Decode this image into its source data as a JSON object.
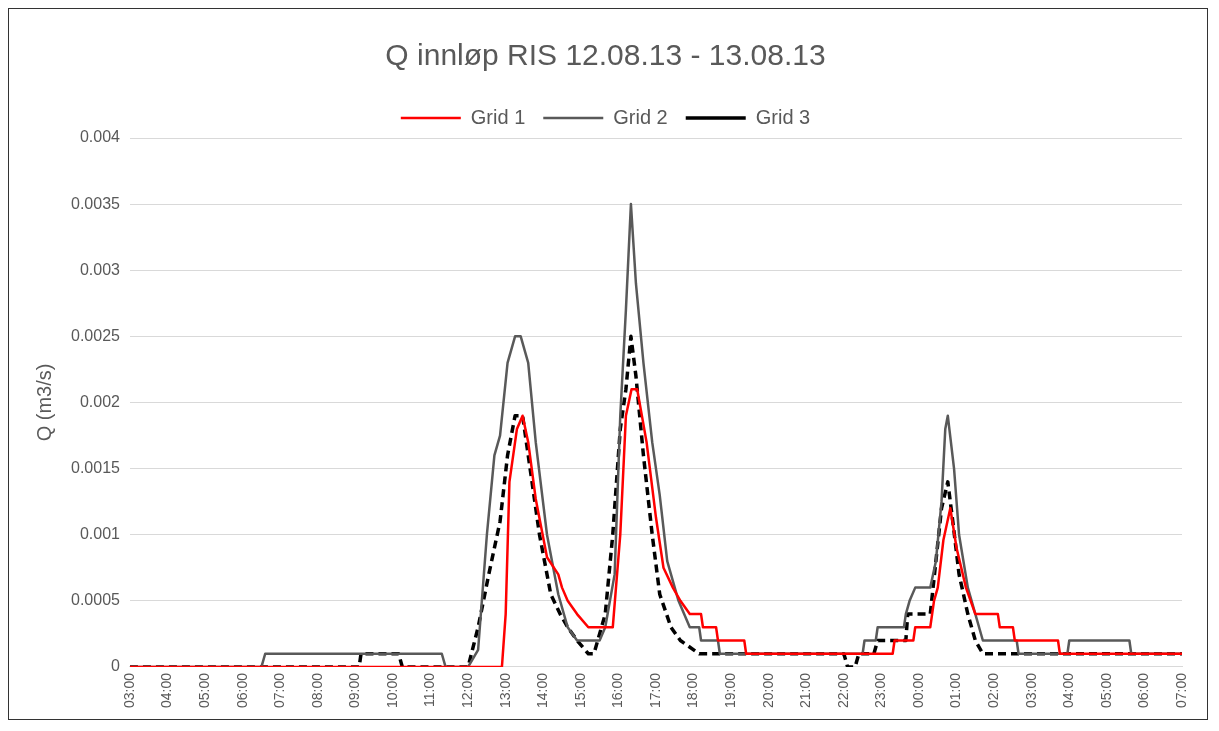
{
  "chart_data": {
    "type": "line",
    "title": "Q innløp RIS 12.08.13 - 13.08.13",
    "ylabel": "Q (m3/s)",
    "xlim": [
      "--08-12T03:00",
      "--08-13T07:00"
    ],
    "xticks": [
      {
        "value": "--08-12T03:00",
        "label": "03:00"
      },
      {
        "value": "--08-12T04:00",
        "label": "04:00"
      },
      {
        "value": "--08-12T05:00",
        "label": "05:00"
      },
      {
        "value": "--08-12T06:00",
        "label": "06:00"
      },
      {
        "value": "--08-12T07:00",
        "label": "07:00"
      },
      {
        "value": "--08-12T08:00",
        "label": "08:00"
      },
      {
        "value": "--08-12T09:00",
        "label": "09:00"
      },
      {
        "value": "--08-12T10:00",
        "label": "10:00"
      },
      {
        "value": "--08-12T11:00",
        "label": "11:00"
      },
      {
        "value": "--08-12T12:00",
        "label": "12:00"
      },
      {
        "value": "--08-12T13:00",
        "label": "13:00"
      },
      {
        "value": "--08-12T14:00",
        "label": "14:00"
      },
      {
        "value": "--08-12T15:00",
        "label": "15:00"
      },
      {
        "value": "--08-12T16:00",
        "label": "16:00"
      },
      {
        "value": "--08-12T17:00",
        "label": "17:00"
      },
      {
        "value": "--08-12T18:00",
        "label": "18:00"
      },
      {
        "value": "--08-12T19:00",
        "label": "19:00"
      },
      {
        "value": "--08-12T20:00",
        "label": "20:00"
      },
      {
        "value": "--08-12T21:00",
        "label": "21:00"
      },
      {
        "value": "--08-12T22:00",
        "label": "22:00"
      },
      {
        "value": "--08-12T23:00",
        "label": "23:00"
      },
      {
        "value": "--08-13T00:00",
        "label": "00:00"
      },
      {
        "value": "--08-13T01:00",
        "label": "01:00"
      },
      {
        "value": "--08-13T02:00",
        "label": "02:00"
      },
      {
        "value": "--08-13T03:00",
        "label": "03:00"
      },
      {
        "value": "--08-13T04:00",
        "label": "04:00"
      },
      {
        "value": "--08-13T05:00",
        "label": "05:00"
      },
      {
        "value": "--08-13T06:00",
        "label": "06:00"
      },
      {
        "value": "--08-13T07:00",
        "label": "07:00"
      }
    ],
    "ylim": [
      0,
      0.004
    ],
    "yticks": [
      0,
      0.0005,
      0.001,
      0.0015,
      0.002,
      0.0025,
      0.003,
      0.0035,
      0.004
    ],
    "grid": "y",
    "legend": "top",
    "marker": "none",
    "series": [
      {
        "name": "Grid 1",
        "color": "#ff0000",
        "line_style": "solid",
        "x": [
          "--08-12T03:00",
          "--08-12T12:54",
          "--08-12T13:00",
          "--08-12T13:06",
          "--08-12T13:18",
          "--08-12T13:27",
          "--08-12T13:36",
          "--08-12T13:48",
          "--08-12T14:06",
          "--08-12T14:24",
          "--08-12T14:30",
          "--08-12T14:39",
          "--08-12T14:54",
          "--08-12T15:12",
          "--08-12T15:51",
          "--08-12T16:03",
          "--08-12T16:12",
          "--08-12T16:21",
          "--08-12T16:30",
          "--08-12T16:45",
          "--08-12T17:00",
          "--08-12T17:12",
          "--08-12T17:27",
          "--08-12T17:39",
          "--08-12T17:54",
          "--08-12T18:12",
          "--08-12T18:15",
          "--08-12T18:36",
          "--08-12T18:39",
          "--08-12T19:21",
          "--08-12T19:24",
          "--08-12T23:18",
          "--08-12T23:21",
          "--08-12T23:51",
          "--08-12T23:54",
          "--08-13T00:18",
          "--08-13T00:24",
          "--08-13T00:30",
          "--08-13T00:39",
          "--08-13T00:50",
          "--08-13T01:00",
          "--08-13T01:15",
          "--08-13T01:30",
          "--08-13T02:06",
          "--08-13T02:09",
          "--08-13T02:30",
          "--08-13T02:33",
          "--08-13T03:42",
          "--08-13T03:45",
          "--08-13T07:00"
        ],
        "values": [
          0,
          0,
          0.0004,
          0.0014,
          0.0018,
          0.0019,
          0.0017,
          0.00127,
          0.00083,
          0.0007,
          0.0006,
          0.0005,
          0.0004,
          0.0003,
          0.0003,
          0.001,
          0.0019,
          0.0021,
          0.0021,
          0.0017,
          0.00113,
          0.00075,
          0.0006,
          0.0005,
          0.0004,
          0.0004,
          0.0003,
          0.0003,
          0.0002,
          0.0002,
          0.0001,
          0.0001,
          0.0002,
          0.0002,
          0.0003,
          0.0003,
          0.0005,
          0.0006,
          0.00096,
          0.0012,
          0.0009,
          0.0006,
          0.0004,
          0.0004,
          0.0003,
          0.0003,
          0.0002,
          0.0002,
          0.0001,
          0.0001
        ]
      },
      {
        "name": "Grid 2",
        "color": "#595959",
        "line_style": "solid",
        "x": [
          "--08-12T03:00",
          "--08-12T06:30",
          "--08-12T06:36",
          "--08-12T11:18",
          "--08-12T11:24",
          "--08-12T12:00",
          "--08-12T12:16",
          "--08-12T12:30",
          "--08-12T12:42",
          "--08-12T12:51",
          "--08-12T13:03",
          "--08-12T13:15",
          "--08-12T13:24",
          "--08-12T13:36",
          "--08-12T13:48",
          "--08-12T14:06",
          "--08-12T14:24",
          "--08-12T14:39",
          "--08-12T14:54",
          "--08-12T15:30",
          "--08-12T15:39",
          "--08-12T15:54",
          "--08-12T16:03",
          "--08-12T16:12",
          "--08-12T16:20",
          "--08-12T16:28",
          "--08-12T16:40",
          "--08-12T16:54",
          "--08-12T17:06",
          "--08-12T17:18",
          "--08-12T17:36",
          "--08-12T17:54",
          "--08-12T18:09",
          "--08-12T18:12",
          "--08-12T18:39",
          "--08-12T18:42",
          "--08-12T22:30",
          "--08-12T22:33",
          "--08-12T22:51",
          "--08-12T22:54",
          "--08-12T23:36",
          "--08-12T23:39",
          "--08-12T23:45",
          "--08-12T23:54",
          "--08-13T00:18",
          "--08-13T00:27",
          "--08-13T00:36",
          "--08-13T00:42",
          "--08-13T00:46",
          "--08-13T00:56",
          "--08-13T01:04",
          "--08-13T01:18",
          "--08-13T01:30",
          "--08-13T01:42",
          "--08-13T02:36",
          "--08-13T02:39",
          "--08-13T03:57",
          "--08-13T04:00",
          "--08-13T05:36",
          "--08-13T05:39",
          "--08-13T07:00"
        ],
        "values": [
          0,
          0,
          0.0001,
          0.0001,
          0,
          0,
          0.00013,
          0.001,
          0.0016,
          0.00175,
          0.0023,
          0.0025,
          0.0025,
          0.0023,
          0.0017,
          0.001,
          0.00055,
          0.0003,
          0.0002,
          0.0002,
          0.0003,
          0.0007,
          0.0019,
          0.0027,
          0.0035,
          0.0029,
          0.0023,
          0.0017,
          0.0013,
          0.0008,
          0.0005,
          0.0003,
          0.0003,
          0.0002,
          0.0002,
          0.0001,
          0.0001,
          0.0002,
          0.0002,
          0.0003,
          0.0003,
          0.0004,
          0.0005,
          0.0006,
          0.0006,
          0.0008,
          0.00125,
          0.0018,
          0.0019,
          0.0015,
          0.001,
          0.0006,
          0.0004,
          0.0002,
          0.0002,
          0.0001,
          0.0001,
          0.0002,
          0.0002,
          0.0001,
          0.0001
        ]
      },
      {
        "name": "Grid 3",
        "color": "#000000",
        "line_style": "dashed",
        "x": [
          "--08-12T03:00",
          "--08-12T09:06",
          "--08-12T09:09",
          "--08-12T10:09",
          "--08-12T10:15",
          "--08-12T12:00",
          "--08-12T12:16",
          "--08-12T12:33",
          "--08-12T12:51",
          "--08-12T13:03",
          "--08-12T13:15",
          "--08-12T13:27",
          "--08-12T13:42",
          "--08-12T13:54",
          "--08-12T14:12",
          "--08-12T14:27",
          "--08-12T14:39",
          "--08-12T14:54",
          "--08-12T15:12",
          "--08-12T15:21",
          "--08-12T15:39",
          "--08-12T15:51",
          "--08-12T16:03",
          "--08-12T16:12",
          "--08-12T16:20",
          "--08-12T16:28",
          "--08-12T16:40",
          "--08-12T16:54",
          "--08-12T17:06",
          "--08-12T17:24",
          "--08-12T17:39",
          "--08-12T18:09",
          "--08-12T22:00",
          "--08-12T22:06",
          "--08-12T22:18",
          "--08-12T22:24",
          "--08-12T22:48",
          "--08-12T22:54",
          "--08-12T23:39",
          "--08-12T23:42",
          "--08-13T00:18",
          "--08-13T00:27",
          "--08-13T00:36",
          "--08-13T00:46",
          "--08-13T00:54",
          "--08-13T01:04",
          "--08-13T01:18",
          "--08-13T01:30",
          "--08-13T01:42",
          "--08-13T07:00"
        ],
        "values": [
          0,
          0,
          0.0001,
          0.0001,
          0,
          0,
          0.0003,
          0.0007,
          0.0011,
          0.0016,
          0.0019,
          0.0019,
          0.0014,
          0.001,
          0.00055,
          0.0004,
          0.0003,
          0.0002,
          0.0001,
          0.0001,
          0.0004,
          0.001,
          0.0018,
          0.0021,
          0.0025,
          0.0022,
          0.0016,
          0.001,
          0.00055,
          0.0003,
          0.0002,
          0.0001,
          0.0001,
          0,
          0,
          0.0001,
          0.0001,
          0.0002,
          0.0002,
          0.0004,
          0.0004,
          0.0008,
          0.0012,
          0.0014,
          0.0011,
          0.0007,
          0.0004,
          0.0002,
          0.0001,
          0.0001
        ]
      }
    ]
  }
}
